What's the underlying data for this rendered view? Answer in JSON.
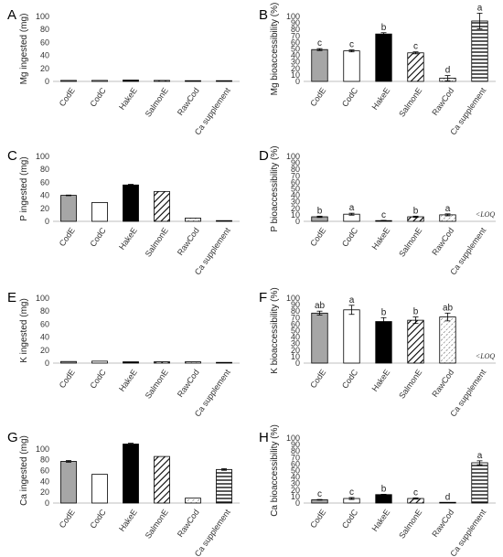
{
  "categories": [
    "CodE",
    "CodC",
    "HakeE",
    "SalmonE",
    "RawCod",
    "Ca supplement"
  ],
  "fills": [
    "grey",
    "white",
    "black",
    "diag",
    "dashdiag",
    "hlines"
  ],
  "colors": {
    "grey": "#a6a6a6",
    "black": "#000000",
    "stroke": "#000000",
    "axis": "#bfbfbf"
  },
  "chart_data": [
    {
      "panel": "A",
      "type": "bar",
      "ylabel": "Mg ingested (mg)",
      "ylim": [
        0,
        100
      ],
      "yticks": [
        0,
        20,
        40,
        60,
        80,
        100
      ],
      "values": [
        1.5,
        1.5,
        2,
        1.5,
        1,
        1
      ],
      "errors": [
        0,
        0,
        0,
        0,
        0,
        0
      ],
      "letters": [
        "",
        "",
        "",
        "",
        "",
        ""
      ]
    },
    {
      "panel": "B",
      "type": "bar",
      "ylabel": "Mg bioaccessibility (%)",
      "ylim": [
        0,
        100
      ],
      "yticks": [
        0,
        10,
        20,
        30,
        40,
        50,
        60,
        70,
        80,
        90,
        100
      ],
      "values": [
        49,
        47,
        73,
        44,
        5,
        93
      ],
      "errors": [
        1.5,
        1.5,
        2,
        1.5,
        4,
        12
      ],
      "letters": [
        "c",
        "c",
        "b",
        "c",
        "d",
        "a"
      ]
    },
    {
      "panel": "C",
      "type": "bar",
      "ylabel": "P ingested (mg)",
      "ylim": [
        0,
        100
      ],
      "yticks": [
        0,
        20,
        40,
        60,
        80,
        100
      ],
      "values": [
        40,
        29,
        56,
        46,
        5,
        1
      ],
      "errors": [
        0.5,
        0,
        1,
        0,
        0,
        0
      ],
      "letters": [
        "",
        "",
        "",
        "",
        "",
        ""
      ]
    },
    {
      "panel": "D",
      "type": "bar",
      "ylabel": "P bioaccessibility (%)",
      "ylim": [
        0,
        100
      ],
      "yticks": [
        0,
        10,
        20,
        30,
        40,
        50,
        60,
        70,
        80,
        90,
        100
      ],
      "values": [
        7,
        11,
        1,
        7,
        10,
        null
      ],
      "errors": [
        1,
        1.5,
        0.5,
        1,
        1.5,
        0
      ],
      "letters": [
        "b",
        "a",
        "c",
        "b",
        "a",
        ""
      ],
      "annotation": "<LOQ"
    },
    {
      "panel": "E",
      "type": "bar",
      "ylabel": "K ingested (mg)",
      "ylim": [
        0,
        100
      ],
      "yticks": [
        0,
        20,
        40,
        60,
        80,
        100
      ],
      "values": [
        2.5,
        3,
        2,
        2,
        2,
        1
      ],
      "errors": [
        0,
        0,
        0,
        0,
        0,
        0
      ],
      "letters": [
        "",
        "",
        "",
        "",
        "",
        ""
      ]
    },
    {
      "panel": "F",
      "type": "bar",
      "ylabel": "K bioaccessibility (%)",
      "ylim": [
        0,
        100
      ],
      "yticks": [
        0,
        10,
        20,
        30,
        40,
        50,
        60,
        70,
        80,
        90,
        100
      ],
      "values": [
        77,
        82,
        64,
        66,
        71,
        null
      ],
      "errors": [
        3,
        7,
        6,
        5,
        6,
        0
      ],
      "letters": [
        "ab",
        "a",
        "b",
        "b",
        "ab",
        ""
      ],
      "annotation": "<LOQ"
    },
    {
      "panel": "G",
      "type": "bar",
      "ylabel": "Ca ingested (mg)",
      "ylim": [
        0,
        120
      ],
      "yticks": [
        0,
        20,
        40,
        60,
        80,
        100
      ],
      "values": [
        77,
        53,
        109,
        86,
        9,
        62
      ],
      "errors": [
        1.5,
        0,
        1.5,
        0,
        0,
        1.5
      ],
      "letters": [
        "",
        "",
        "",
        "",
        "",
        ""
      ]
    },
    {
      "panel": "H",
      "type": "bar",
      "ylabel": "Ca bioaccessibility (%)",
      "ylim": [
        0,
        100
      ],
      "yticks": [
        0,
        10,
        20,
        30,
        40,
        50,
        60,
        70,
        80,
        90,
        100
      ],
      "values": [
        5,
        7,
        13,
        7,
        0.5,
        62
      ],
      "errors": [
        0.5,
        1.5,
        0.5,
        1,
        0,
        3
      ],
      "letters": [
        "c",
        "c",
        "b",
        "c",
        "d",
        "a"
      ]
    }
  ]
}
